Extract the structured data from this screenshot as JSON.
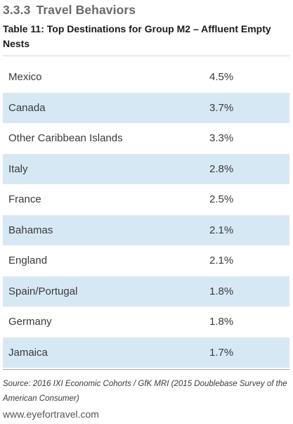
{
  "section": {
    "number": "3.3.3",
    "title": "Travel Behaviors"
  },
  "table": {
    "caption": "Table 11: Top Destinations for Group M2 – Affluent Empty Nests",
    "rows": [
      {
        "destination": "Mexico",
        "share": "4.5%"
      },
      {
        "destination": "Canada",
        "share": "3.7%"
      },
      {
        "destination": "Other Caribbean Islands",
        "share": "3.3%"
      },
      {
        "destination": "Italy",
        "share": "2.8%"
      },
      {
        "destination": "France",
        "share": "2.5%"
      },
      {
        "destination": "Bahamas",
        "share": "2.1%"
      },
      {
        "destination": "England",
        "share": "2.1%"
      },
      {
        "destination": "Spain/Portugal",
        "share": "1.8%"
      },
      {
        "destination": "Germany",
        "share": "1.8%"
      },
      {
        "destination": "Jamaica",
        "share": "1.7%"
      }
    ],
    "stripe_color": "#d7e8f5"
  },
  "source_note": "Source: 2016 IXI Economic Cohorts / GfK MRI (2015 Doublebase Survey of the American Consumer)",
  "footer": {
    "url": "www.eyefortravel.com"
  }
}
